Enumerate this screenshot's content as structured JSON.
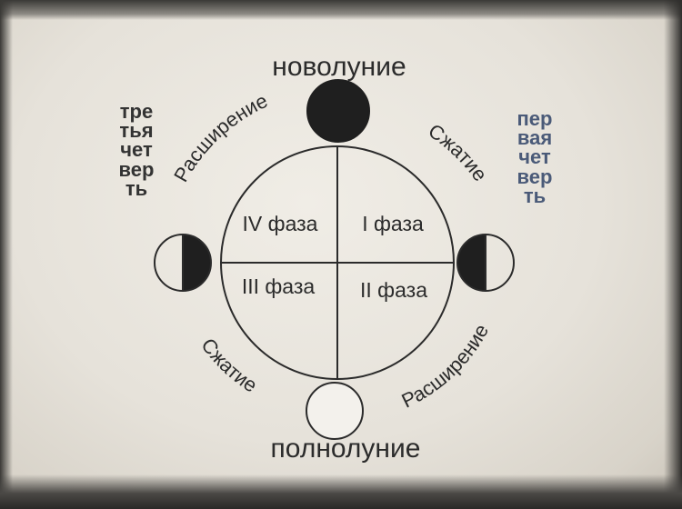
{
  "diagram": {
    "top_label": "новолуние",
    "bottom_label": "полнолуние",
    "left_vertical_label": "третья четверть",
    "right_vertical_label": "первая четверть",
    "arc_labels": {
      "upper_left": "Расширение",
      "upper_right": "Сжатие",
      "lower_left": "Сжатие",
      "lower_right": "Расширение"
    },
    "quadrants": {
      "top_left": "IV фаза",
      "top_right": "I фаза",
      "bottom_left": "III фаза",
      "bottom_right": "II фаза"
    },
    "colors": {
      "ink": "#2b2b2b",
      "left_text": "#333333",
      "right_text": "#4a5a78"
    }
  }
}
